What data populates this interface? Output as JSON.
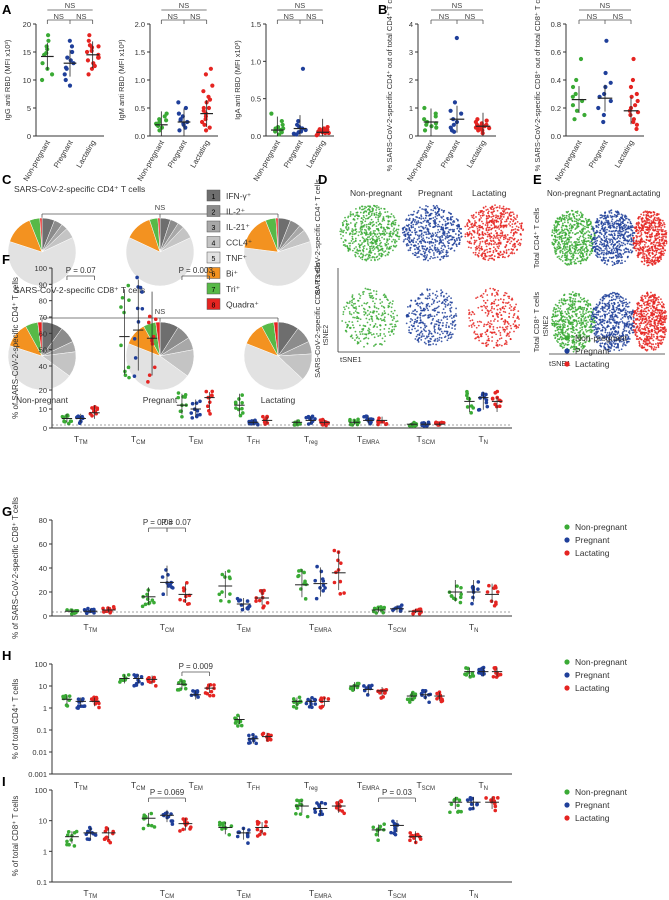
{
  "colors": {
    "np": "#3aaa35",
    "preg": "#1f3f9a",
    "lac": "#e52421",
    "axis": "#333333",
    "ns": "#555555"
  },
  "panels": {
    "A": "A",
    "B": "B",
    "C": "C",
    "D": "D",
    "E": "E",
    "F": "F",
    "G": "G",
    "H": "H",
    "I": "I"
  },
  "groups": [
    "Non-pregnant",
    "Pregnant",
    "Lactating"
  ],
  "ns": "NS",
  "panelA": [
    {
      "ylabel": "IgG anti RBD (MFI x10³)",
      "ticks": [
        "0",
        "5",
        "10",
        "15",
        "20"
      ],
      "ylim": [
        0,
        20
      ],
      "medians": [
        14.2,
        13.0,
        14.5
      ],
      "points": [
        [
          15.5,
          18,
          13,
          14.5,
          16,
          12,
          10,
          11,
          17,
          14.8
        ],
        [
          14,
          13,
          16,
          11,
          9,
          12,
          15,
          10,
          13.5,
          17,
          12.2
        ],
        [
          15,
          14,
          16,
          13.5,
          12,
          14.5,
          17,
          15.2,
          13,
          12.5,
          16.2,
          11,
          14,
          15.8,
          18
        ]
      ]
    },
    {
      "ylabel": "IgM anti RBD (MFI x10³)",
      "ticks": [
        "0.0",
        "0.5",
        "1.0",
        "1.5",
        "2.0"
      ],
      "ylim": [
        0,
        2
      ],
      "medians": [
        0.2,
        0.25,
        0.4
      ],
      "points": [
        [
          0.15,
          0.3,
          0.2,
          0.35,
          0.25,
          0.1,
          0.22,
          0.4,
          0.18,
          0.28
        ],
        [
          0.2,
          0.3,
          0.15,
          0.35,
          0.25,
          0.5,
          0.1,
          0.28,
          0.22,
          0.4,
          0.6
        ],
        [
          0.3,
          0.5,
          0.7,
          0.9,
          0.2,
          0.4,
          0.6,
          1.1,
          1.2,
          0.1,
          0.35,
          0.45,
          0.8,
          0.15,
          0.25,
          0.5,
          0.65
        ]
      ]
    },
    {
      "ylabel": "IgA anti RBD (MFI x10³)",
      "ticks": [
        "0.0",
        "0.5",
        "1.0",
        "1.5"
      ],
      "ylim": [
        0,
        1.5
      ],
      "medians": [
        0.08,
        0.1,
        0.05
      ],
      "points": [
        [
          0.05,
          0.1,
          0.15,
          0.2,
          0.08,
          0.02,
          0.12,
          0.3,
          0.06,
          0.1
        ],
        [
          0.02,
          0.05,
          0.1,
          0.9,
          0.15,
          0.08,
          0.03,
          0.2,
          0.06,
          0.12
        ],
        [
          0.02,
          0.04,
          0.06,
          0.08,
          0.1,
          0.05,
          0.03,
          0.07,
          0.12,
          0.09,
          0.01,
          0.06,
          0.04,
          0.08,
          0.05
        ]
      ]
    }
  ],
  "panelB": [
    {
      "ylabel": "% SARS-CoV-2-specific CD4⁺ out of total CD4⁺ T cells",
      "ticks": [
        "0",
        "1",
        "2",
        "3",
        "4"
      ],
      "ylim": [
        0,
        4
      ],
      "medians": [
        0.5,
        0.6,
        0.35
      ],
      "points": [
        [
          0.3,
          0.5,
          0.8,
          0.4,
          1.0,
          0.2,
          0.6,
          0.35,
          0.7,
          0.45
        ],
        [
          0.2,
          0.5,
          0.9,
          0.4,
          3.5,
          0.3,
          1.2,
          0.6,
          0.15,
          0.8
        ],
        [
          0.3,
          0.2,
          0.5,
          0.35,
          0.4,
          0.25,
          0.6,
          0.1,
          0.45,
          0.3,
          0.55,
          0.2,
          0.4,
          0.35,
          0.28
        ]
      ]
    },
    {
      "ylabel": "% SARS-CoV-2-specific CD8⁺ out of total CD8⁺ T cells",
      "ticks": [
        "0.0",
        "0.2",
        "0.4",
        "0.6",
        "0.8"
      ],
      "ylim": [
        0,
        0.8
      ],
      "medians": [
        0.26,
        0.27,
        0.18
      ],
      "points": [
        [
          0.25,
          0.55,
          0.3,
          0.18,
          0.22,
          0.15,
          0.35,
          0.28,
          0.12,
          0.4
        ],
        [
          0.2,
          0.68,
          0.3,
          0.1,
          0.45,
          0.25,
          0.35,
          0.15,
          0.28,
          0.38
        ],
        [
          0.1,
          0.2,
          0.3,
          0.55,
          0.15,
          0.25,
          0.05,
          0.18,
          0.35,
          0.12,
          0.22,
          0.08,
          0.28,
          0.17,
          0.4
        ]
      ]
    }
  ],
  "panelC": {
    "cd4_title": "SARS-CoV-2-specific CD4⁺ T cells",
    "cd8_title": "SARS-CoV-2-specific CD8⁺ T cells",
    "legend": [
      {
        "num": "1",
        "label": "IFN-γ⁺",
        "color": "#6e6e6e"
      },
      {
        "num": "2",
        "label": "IL-2⁺",
        "color": "#8c8c8c"
      },
      {
        "num": "3",
        "label": "IL-21⁺",
        "color": "#a8a8a8"
      },
      {
        "num": "4",
        "label": "CCL4⁺",
        "color": "#c4c4c4"
      },
      {
        "num": "5",
        "label": "TNF⁺",
        "color": "#e2e2e2"
      },
      {
        "num": "6",
        "label": "Bi⁺",
        "color": "#f39220"
      },
      {
        "num": "7",
        "label": "Tri⁺",
        "color": "#57b947"
      },
      {
        "num": "8",
        "label": "Quadra⁺",
        "color": "#e52421"
      }
    ],
    "cd4_pies": [
      [
        6,
        4,
        3,
        5,
        62,
        14,
        5,
        1
      ],
      [
        5,
        4,
        3,
        6,
        64,
        13,
        4,
        1
      ],
      [
        6,
        5,
        3,
        6,
        57,
        17,
        5,
        1
      ]
    ],
    "cd8_pies": [
      [
        10,
        8,
        5,
        12,
        45,
        12,
        6,
        2
      ],
      [
        9,
        7,
        6,
        13,
        46,
        11,
        6,
        2
      ],
      [
        10,
        8,
        6,
        13,
        44,
        11,
        6,
        2
      ]
    ]
  },
  "panelD": {
    "ylabel1": "SARS-CoV-2-specific CD4⁺ T cells",
    "ylabel2": "SARS-CoV-2-specific CD8⁺ T cells",
    "tsne2": "tSNE2",
    "tsne1": "tSNE1"
  },
  "panelE": {
    "ylabel1": "Total CD4⁺ T cells",
    "ylabel2": "Total CD8⁺ T cells",
    "tsne2": "tSNE2",
    "tsne1": "tSNE1"
  },
  "panelF": {
    "ylabel": "% of SARS-CoV-2-specific CD4⁺ T cells",
    "ticks": [
      "0",
      "10",
      "20",
      "40",
      "50",
      "60",
      "70",
      "80",
      "90",
      "100"
    ],
    "categories": [
      [
        "T",
        "TM"
      ],
      [
        "T",
        "CM"
      ],
      [
        "T",
        "EM"
      ],
      [
        "T",
        "FH"
      ],
      [
        "T",
        "reg"
      ],
      [
        "T",
        "EMRA"
      ],
      [
        "T",
        "SCM"
      ],
      [
        "T",
        "N"
      ]
    ],
    "annotations": [
      {
        "cat": 0,
        "text": "P = 0.07"
      },
      {
        "cat": 2,
        "text": "P = 0.003"
      }
    ],
    "medians": [
      [
        5,
        5,
        8
      ],
      [
        58,
        62,
        57
      ],
      [
        12,
        10,
        16
      ],
      [
        12,
        3,
        4
      ],
      [
        3,
        4,
        3
      ],
      [
        3,
        4,
        4
      ],
      [
        2,
        2,
        2
      ],
      [
        14,
        16,
        14
      ]
    ]
  },
  "panelG": {
    "ylabel": "% of SARS-CoV-2-specific CD8⁺ T cells",
    "ticks": [
      "0",
      "20",
      "40",
      "60",
      "80"
    ],
    "categories": [
      [
        "T",
        "TM"
      ],
      [
        "T",
        "CM"
      ],
      [
        "T",
        "EM"
      ],
      [
        "T",
        "EMRA"
      ],
      [
        "T",
        "SCM"
      ],
      [
        "T",
        "N"
      ]
    ],
    "annotations": [
      {
        "cat": 1,
        "text": "P = 0.08"
      },
      {
        "cat": 1,
        "text": "P = 0.07"
      }
    ],
    "medians": [
      [
        4,
        4,
        5
      ],
      [
        16,
        28,
        18
      ],
      [
        25,
        10,
        15
      ],
      [
        26,
        27,
        36
      ],
      [
        5,
        6,
        4
      ],
      [
        20,
        20,
        18
      ]
    ]
  },
  "panelH": {
    "ylabel": "% of total CD4⁺ T cells",
    "ticks": [
      "0.001",
      "0.01",
      "0.1",
      "1",
      "10",
      "100"
    ],
    "categories": [
      [
        "T",
        "TM"
      ],
      [
        "T",
        "CM"
      ],
      [
        "T",
        "EM"
      ],
      [
        "T",
        "FH"
      ],
      [
        "T",
        "reg"
      ],
      [
        "T",
        "EMRA"
      ],
      [
        "T",
        "SCM"
      ],
      [
        "T",
        "N"
      ]
    ],
    "annotations": [
      {
        "cat": 2,
        "text": "P = 0.009"
      }
    ],
    "medians": [
      [
        2.5,
        2,
        2
      ],
      [
        22,
        22,
        20
      ],
      [
        12,
        4,
        8
      ],
      [
        0.3,
        0.04,
        0.05
      ],
      [
        2,
        2,
        2
      ],
      [
        10,
        7,
        6
      ],
      [
        3.5,
        4,
        3.5
      ],
      [
        45,
        45,
        45
      ]
    ]
  },
  "panelI": {
    "ylabel": "% of total CD8⁺ T cells",
    "ticks": [
      "0.1",
      "1",
      "10",
      "100"
    ],
    "categories": [
      [
        "T",
        "TM"
      ],
      [
        "T",
        "CM"
      ],
      [
        "T",
        "EM"
      ],
      [
        "T",
        "EMRA"
      ],
      [
        "T",
        "SCM"
      ],
      [
        "T",
        "N"
      ]
    ],
    "annotations": [
      {
        "cat": 1,
        "text": "P = 0.069"
      },
      {
        "cat": 4,
        "text": "P = 0.03"
      }
    ],
    "medians": [
      [
        3,
        4,
        4
      ],
      [
        12,
        15,
        8
      ],
      [
        6,
        4,
        6
      ],
      [
        30,
        25,
        30
      ],
      [
        5,
        7,
        3
      ],
      [
        40,
        40,
        40
      ]
    ]
  }
}
